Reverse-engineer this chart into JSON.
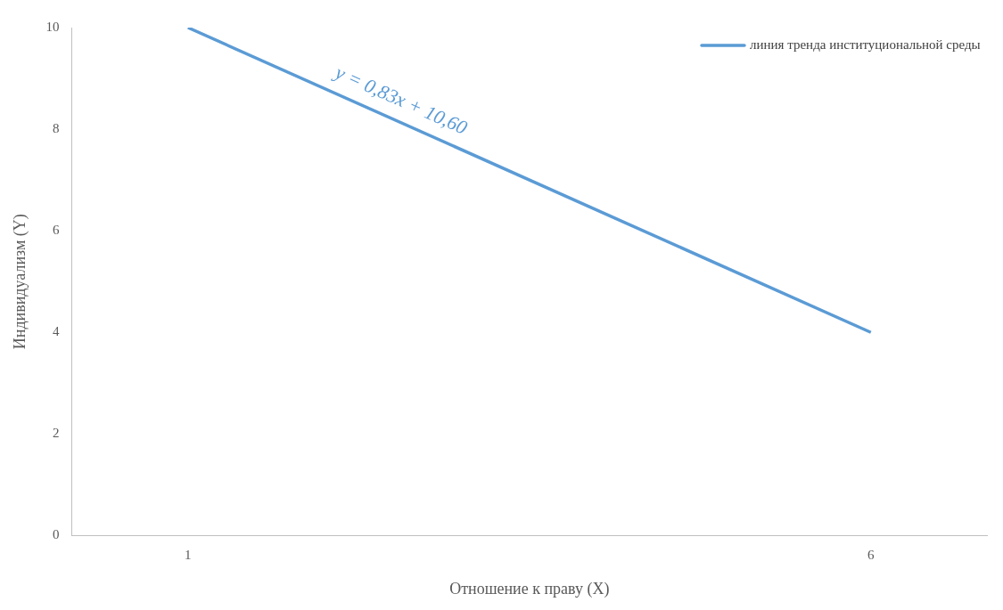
{
  "chart_data": {
    "type": "line",
    "xlabel": "Отношение к праву (X)",
    "ylabel": "Индивидуализм (Y)",
    "x": [
      1,
      6
    ],
    "series": [
      {
        "name": "линия тренда институциональной среды",
        "color": "#5b9bd5",
        "values": [
          10,
          4
        ]
      }
    ],
    "xlim": [
      0.15,
      6.85
    ],
    "xticks": [
      1,
      6
    ],
    "ylim": [
      0,
      10
    ],
    "yticks": [
      0,
      2,
      4,
      6,
      8,
      10
    ],
    "annotations": [
      "y = 0,83x + 10,60"
    ],
    "grid": false,
    "legend": "top right",
    "marker": "none",
    "line_style": "solid"
  }
}
